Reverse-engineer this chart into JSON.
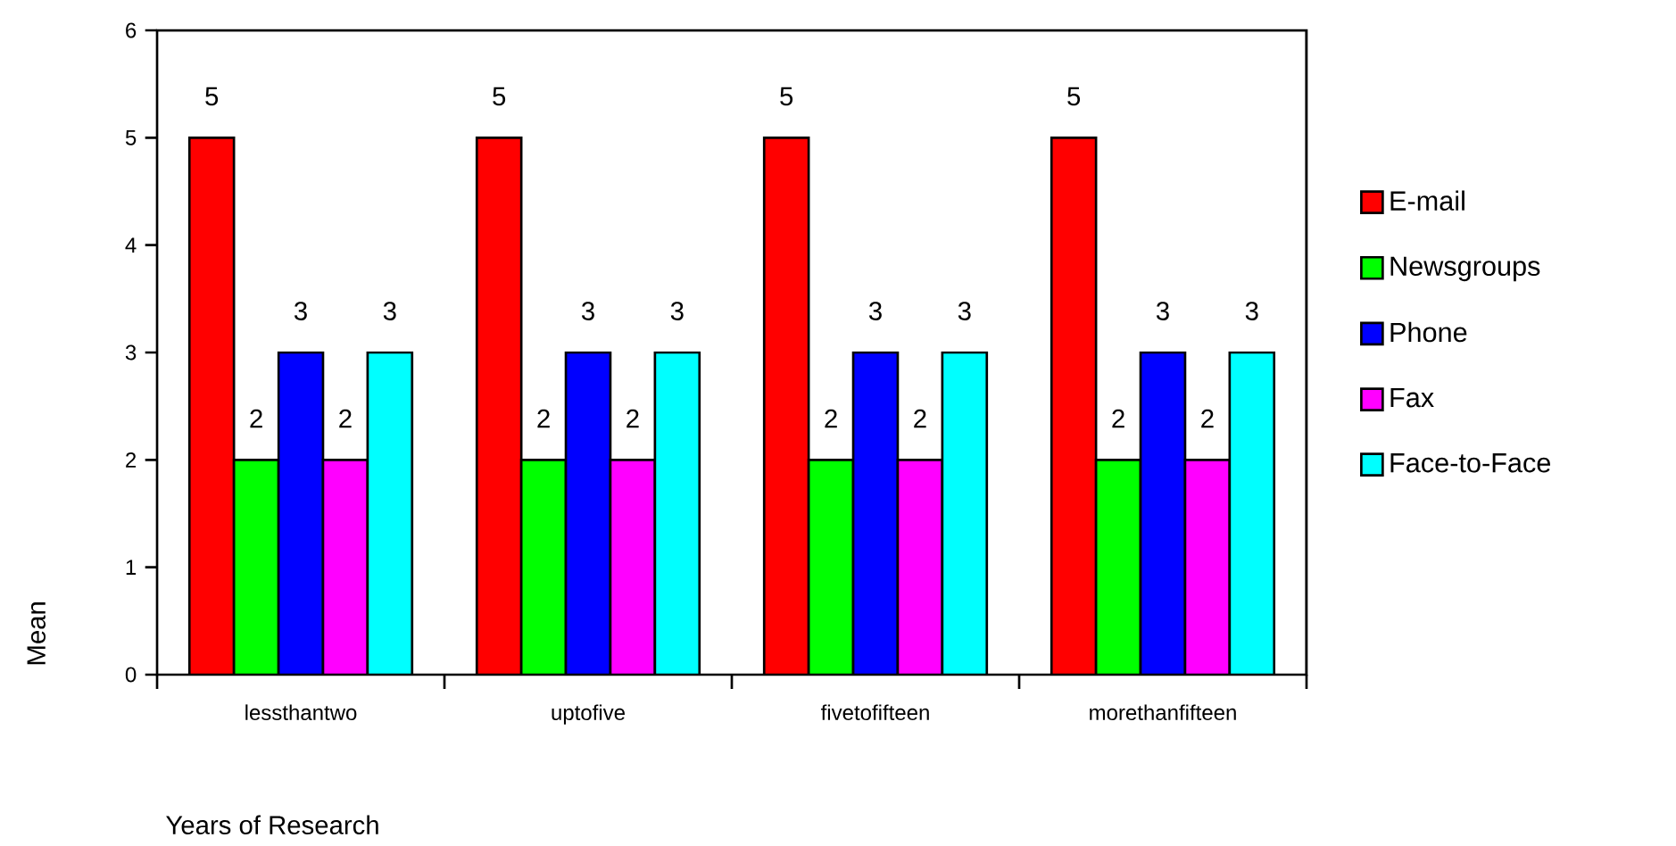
{
  "chart_data": {
    "type": "bar",
    "xlabel": "Years of Research",
    "ylabel": "Mean",
    "categories": [
      "lessthantwo",
      "uptofive",
      "fivetofifteen",
      "morethanfifteen"
    ],
    "series": [
      {
        "name": "E-mail",
        "color": "#ff0000",
        "values": [
          5,
          5,
          5,
          5
        ]
      },
      {
        "name": "Newsgroups",
        "color": "#00ff00",
        "values": [
          2,
          2,
          2,
          2
        ]
      },
      {
        "name": "Phone",
        "color": "#0000ff",
        "values": [
          3,
          3,
          3,
          3
        ]
      },
      {
        "name": "Fax",
        "color": "#ff00ff",
        "values": [
          2,
          2,
          2,
          2
        ]
      },
      {
        "name": "Face-to-Face",
        "color": "#00ffff",
        "values": [
          3,
          3,
          3,
          3
        ]
      }
    ],
    "ylim": [
      0,
      6
    ],
    "yticks": [
      0,
      1,
      2,
      3,
      4,
      5,
      6
    ],
    "data_labels": true,
    "legend": "right",
    "grid": false
  }
}
